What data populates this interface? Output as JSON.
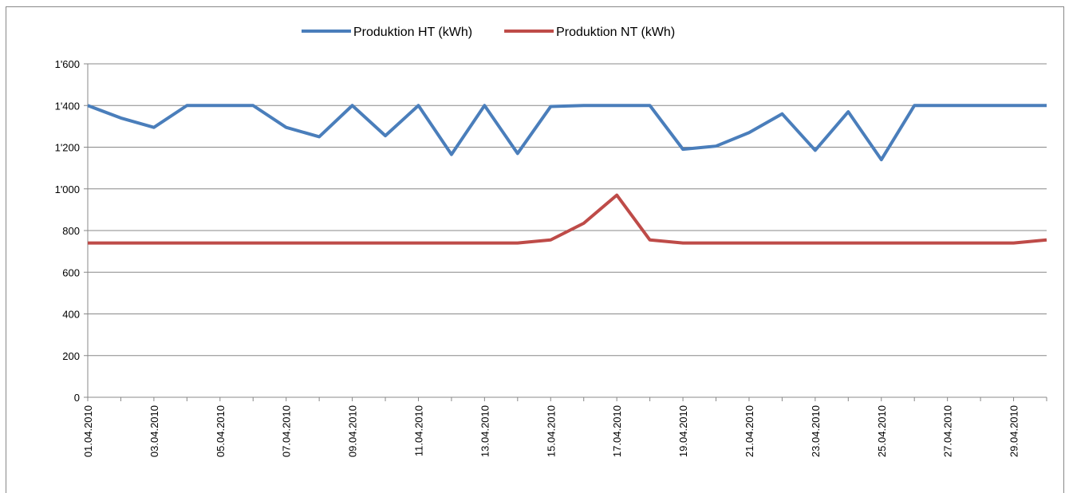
{
  "chart_data": {
    "type": "line",
    "categories": [
      "01.04.2010",
      null,
      "03.04.2010",
      null,
      "05.04.2010",
      null,
      "07.04.2010",
      null,
      "09.04.2010",
      null,
      "11.04.2010",
      null,
      "13.04.2010",
      null,
      "15.04.2010",
      null,
      "17.04.2010",
      null,
      "19.04.2010",
      null,
      "21.04.2010",
      null,
      "23.04.2010",
      null,
      "25.04.2010",
      null,
      "27.04.2010",
      null,
      "29.04.2010",
      null
    ],
    "series": [
      {
        "name": "Produktion HT (kWh)",
        "color": "#4a7ebb",
        "values": [
          1400,
          1340,
          1295,
          1400,
          1400,
          1400,
          1295,
          1250,
          1400,
          1255,
          1400,
          1165,
          1400,
          1170,
          1395,
          1400,
          1400,
          1400,
          1190,
          1205,
          1270,
          1360,
          1185,
          1370,
          1140,
          1400,
          1400,
          1400,
          1400,
          1400
        ]
      },
      {
        "name": "Produktion NT (kWh)",
        "color": "#be4b48",
        "values": [
          740,
          740,
          740,
          740,
          740,
          740,
          740,
          740,
          740,
          740,
          740,
          740,
          740,
          740,
          755,
          835,
          970,
          755,
          740,
          740,
          740,
          740,
          740,
          740,
          740,
          740,
          740,
          740,
          740,
          755
        ]
      }
    ],
    "ylim": [
      0,
      1600
    ],
    "yticks": [
      0,
      200,
      400,
      600,
      800,
      {
        "value": 1000,
        "label": "1'000"
      },
      {
        "value": 1200,
        "label": "1'200"
      },
      {
        "value": 1400,
        "label": "1'400"
      },
      {
        "value": 1600,
        "label": "1'600"
      }
    ],
    "grid": true,
    "legend": "top"
  }
}
